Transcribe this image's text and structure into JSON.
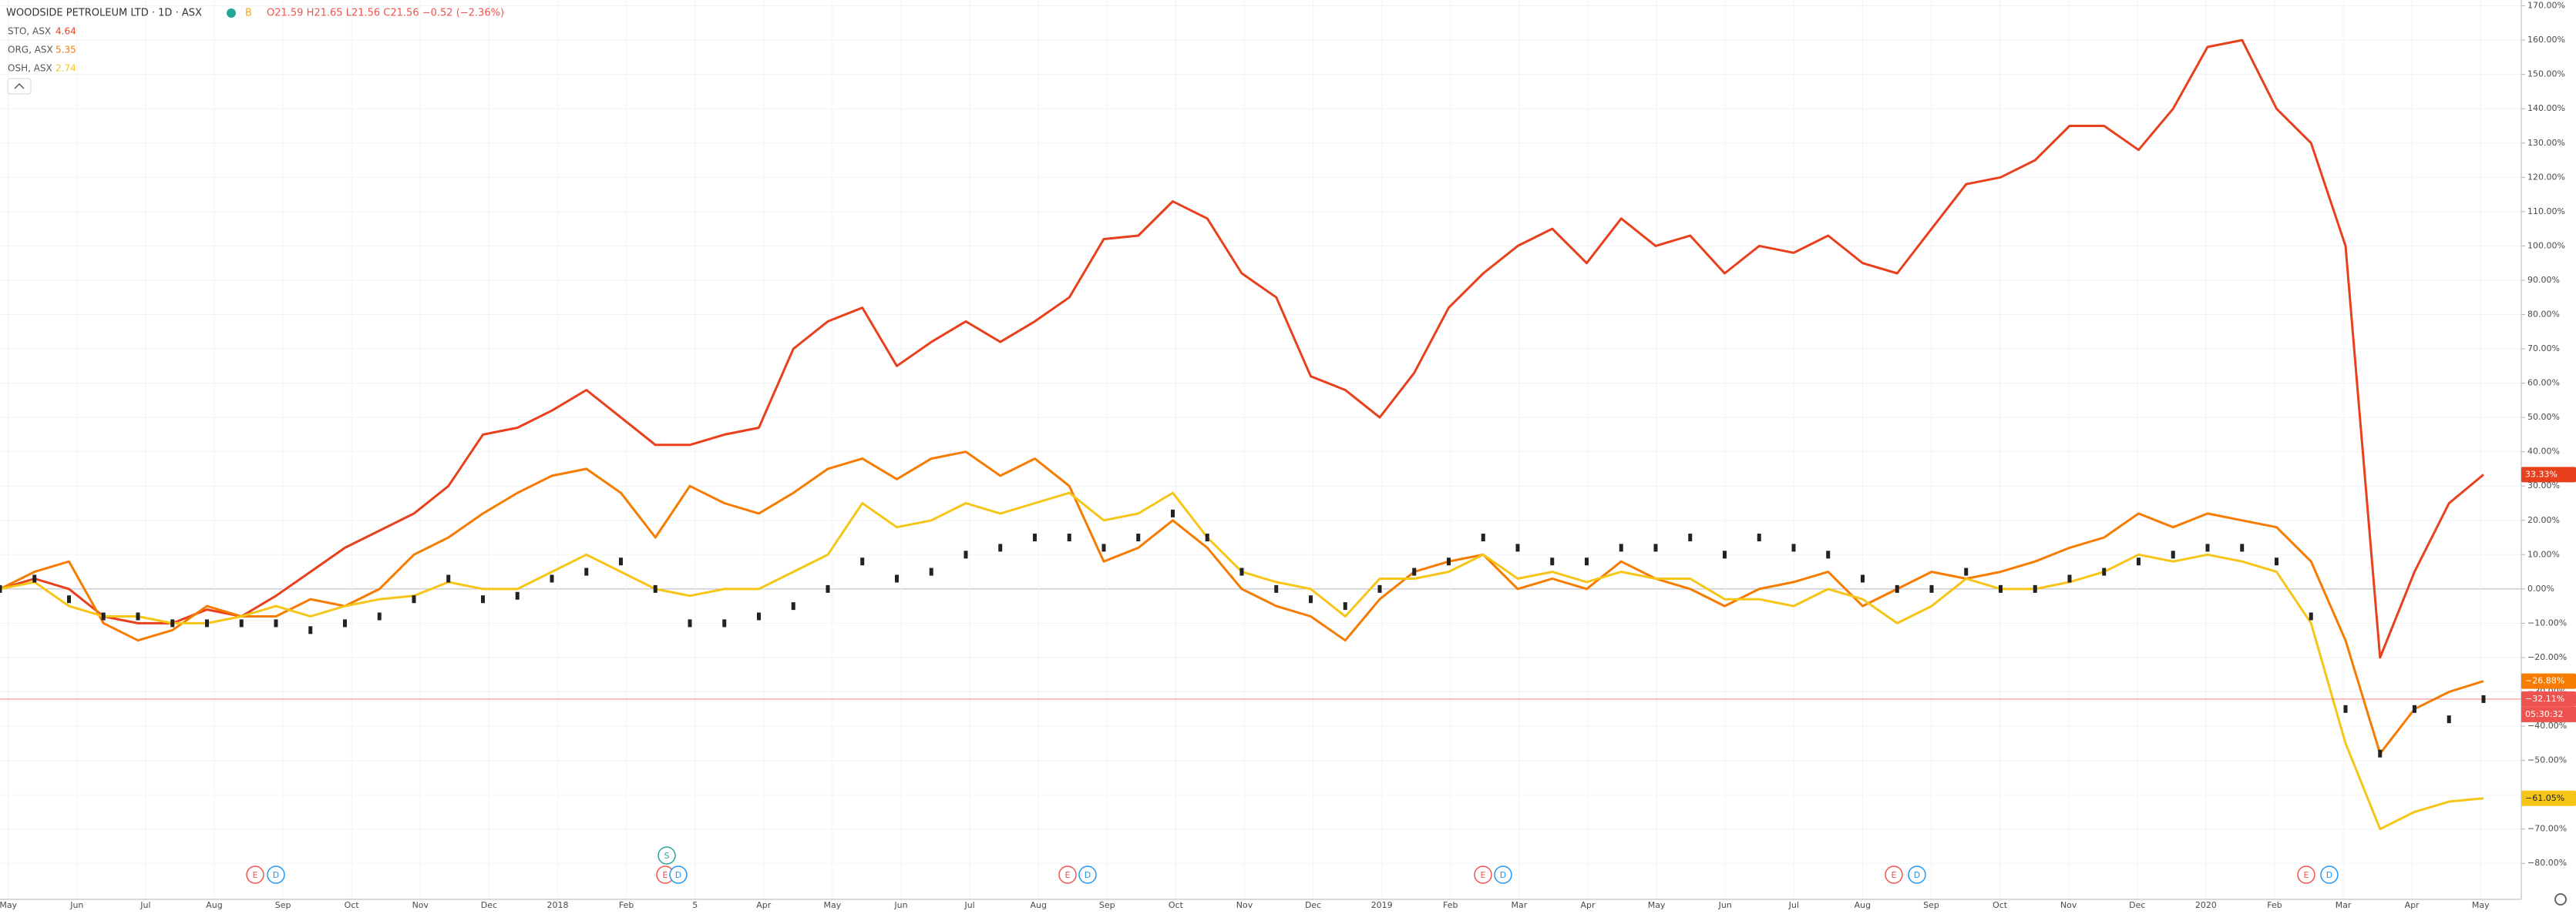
{
  "chart_data": {
    "type": "line",
    "title": "WOODSIDE PETROLEUM LTD · 1D · ASX",
    "badge": "B",
    "ohlc_text": "O21.59 H21.65 L21.56 C21.56 −0.52 (−2.36%)",
    "countdown": "05:30:32",
    "ylim": [
      -90.5,
      171.7
    ],
    "yticks": [
      {
        "value": 170,
        "label": "170.00%"
      },
      {
        "value": 160,
        "label": "160.00%"
      },
      {
        "value": 150,
        "label": "150.00%"
      },
      {
        "value": 140,
        "label": "140.00%"
      },
      {
        "value": 130,
        "label": "130.00%"
      },
      {
        "value": 120,
        "label": "120.00%"
      },
      {
        "value": 110,
        "label": "110.00%"
      },
      {
        "value": 100,
        "label": "100.00%"
      },
      {
        "value": 90,
        "label": "90.00%"
      },
      {
        "value": 80,
        "label": "80.00%"
      },
      {
        "value": 70,
        "label": "70.00%"
      },
      {
        "value": 60,
        "label": "60.00%"
      },
      {
        "value": 50,
        "label": "50.00%"
      },
      {
        "value": 40,
        "label": "40.00%"
      },
      {
        "value": 30,
        "label": "30.00%"
      },
      {
        "value": 20,
        "label": "20.00%"
      },
      {
        "value": 10,
        "label": "10.00%"
      },
      {
        "value": 0,
        "label": "0.00%"
      },
      {
        "value": -10,
        "label": "−10.00%"
      },
      {
        "value": -20,
        "label": "−20.00%"
      },
      {
        "value": -30,
        "label": "−30.00%"
      },
      {
        "value": -40,
        "label": "−40.00%"
      },
      {
        "value": -50,
        "label": "−50.00%"
      },
      {
        "value": -60,
        "label": "−60.00%"
      },
      {
        "value": -70,
        "label": "−70.00%"
      },
      {
        "value": -80,
        "label": "−80.00%"
      }
    ],
    "grid": true,
    "xticks": [
      "May",
      "Jun",
      "Jul",
      "Aug",
      "Sep",
      "Oct",
      "Nov",
      "Dec",
      "2018",
      "Feb",
      "5",
      "Apr",
      "May",
      "Jun",
      "Jul",
      "Aug",
      "Sep",
      "Oct",
      "Nov",
      "Dec",
      "2019",
      "Feb",
      "Mar",
      "Apr",
      "May",
      "Jun",
      "Jul",
      "Aug",
      "Sep",
      "Oct",
      "Nov",
      "Dec",
      "2020",
      "Feb",
      "Mar",
      "Apr",
      "May"
    ],
    "events": [
      "E",
      "D",
      "E",
      "D",
      "S",
      "E",
      "D",
      "E",
      "D",
      "E",
      "D",
      "E",
      "D"
    ],
    "main": {
      "color": "#222222",
      "line_color": "#ef5350",
      "values": [
        0,
        3,
        -3,
        -8,
        -8,
        -10,
        -10,
        -10,
        -10,
        -12,
        -10,
        -8,
        -3,
        3,
        -3,
        -2,
        3,
        5,
        8,
        0,
        -10,
        -10,
        -8,
        -5,
        0,
        8,
        3,
        5,
        10,
        12,
        15,
        15,
        12,
        15,
        22,
        15,
        5,
        0,
        -3,
        -5,
        0,
        5,
        8,
        15,
        12,
        8,
        8,
        12,
        12,
        15,
        10,
        15,
        12,
        10,
        3,
        0,
        0,
        5,
        0,
        0,
        3,
        5,
        8,
        10,
        12,
        12,
        8,
        -8,
        -35,
        -48,
        -35,
        -38,
        -32.11
      ],
      "value_labels": [
        null,
        null,
        null,
        null,
        null,
        null,
        null,
        null,
        null,
        null,
        null,
        null,
        null,
        null,
        null,
        null,
        null,
        null,
        null,
        null,
        null,
        null,
        null,
        null,
        null,
        null,
        null,
        null,
        null,
        null,
        null,
        null,
        null,
        null,
        null,
        null,
        null,
        null,
        null,
        null,
        null,
        null,
        null,
        null,
        null,
        null,
        null,
        null,
        null,
        null,
        null,
        null,
        null,
        null,
        null,
        null,
        null,
        null,
        null,
        null,
        null,
        null,
        null,
        null,
        null,
        null,
        null,
        null,
        null,
        null,
        null,
        null,
        "−32.11%"
      ]
    },
    "series": [
      {
        "name": "STO, ASX",
        "price": 4.64,
        "color": "#e8401c",
        "values": [
          0,
          3,
          0,
          -8,
          -10,
          -10,
          -6,
          -8,
          -2,
          5,
          12,
          17,
          22,
          30,
          45,
          47,
          52,
          58,
          50,
          42,
          42,
          45,
          47,
          70,
          78,
          82,
          65,
          72,
          78,
          72,
          78,
          85,
          102,
          103,
          113,
          108,
          92,
          85,
          62,
          58,
          50,
          63,
          82,
          92,
          100,
          105,
          95,
          108,
          100,
          103,
          92,
          100,
          98,
          103,
          95,
          92,
          105,
          118,
          120,
          125,
          135,
          135,
          128,
          140,
          158,
          160,
          140,
          130,
          100,
          -20,
          5,
          25,
          33.33
        ],
        "value_labels": [
          null,
          null,
          null,
          null,
          null,
          null,
          null,
          null,
          null,
          null,
          null,
          null,
          null,
          null,
          null,
          null,
          null,
          null,
          null,
          null,
          null,
          null,
          null,
          null,
          null,
          null,
          null,
          null,
          null,
          null,
          null,
          null,
          null,
          null,
          null,
          null,
          null,
          null,
          null,
          null,
          null,
          null,
          null,
          null,
          null,
          null,
          null,
          null,
          null,
          null,
          null,
          null,
          null,
          null,
          null,
          null,
          null,
          null,
          null,
          null,
          null,
          null,
          null,
          null,
          null,
          null,
          null,
          null,
          null,
          null,
          null,
          null,
          "33.33%"
        ]
      },
      {
        "name": "ORG, ASX",
        "price": 5.35,
        "color": "#f57c00",
        "values": [
          0,
          5,
          8,
          -10,
          -15,
          -12,
          -5,
          -8,
          -8,
          -3,
          -5,
          0,
          10,
          15,
          22,
          28,
          33,
          35,
          28,
          15,
          30,
          25,
          22,
          28,
          35,
          38,
          32,
          38,
          40,
          33,
          38,
          30,
          8,
          12,
          20,
          12,
          0,
          -5,
          -8,
          -15,
          -3,
          5,
          8,
          10,
          0,
          3,
          0,
          8,
          3,
          0,
          -5,
          0,
          2,
          5,
          -5,
          0,
          5,
          3,
          5,
          8,
          12,
          15,
          22,
          18,
          22,
          20,
          18,
          8,
          -15,
          -48,
          -35,
          -30,
          -26.88
        ],
        "value_labels": [
          null,
          null,
          null,
          null,
          null,
          null,
          null,
          null,
          null,
          null,
          null,
          null,
          null,
          null,
          null,
          null,
          null,
          null,
          null,
          null,
          null,
          null,
          null,
          null,
          null,
          null,
          null,
          null,
          null,
          null,
          null,
          null,
          null,
          null,
          null,
          null,
          null,
          null,
          null,
          null,
          null,
          null,
          null,
          null,
          null,
          null,
          null,
          null,
          null,
          null,
          null,
          null,
          null,
          null,
          null,
          null,
          null,
          null,
          null,
          null,
          null,
          null,
          null,
          null,
          null,
          null,
          null,
          null,
          null,
          null,
          null,
          null,
          "−26.88%"
        ]
      },
      {
        "name": "OSH, ASX",
        "price": 2.74,
        "color": "#f5c518",
        "values": [
          0,
          2,
          -5,
          -8,
          -8,
          -10,
          -10,
          -8,
          -5,
          -8,
          -5,
          -3,
          -2,
          2,
          0,
          0,
          5,
          10,
          5,
          0,
          -2,
          0,
          0,
          5,
          10,
          25,
          18,
          20,
          25,
          22,
          25,
          28,
          20,
          22,
          28,
          15,
          5,
          2,
          0,
          -8,
          3,
          3,
          5,
          10,
          3,
          5,
          2,
          5,
          3,
          3,
          -3,
          -3,
          -5,
          0,
          -3,
          -10,
          -5,
          3,
          0,
          0,
          2,
          5,
          10,
          8,
          10,
          8,
          5,
          -10,
          -45,
          -70,
          -65,
          -62,
          -61.05
        ],
        "value_labels": [
          null,
          null,
          null,
          null,
          null,
          null,
          null,
          null,
          null,
          null,
          null,
          null,
          null,
          null,
          null,
          null,
          null,
          null,
          null,
          null,
          null,
          null,
          null,
          null,
          null,
          null,
          null,
          null,
          null,
          null,
          null,
          null,
          null,
          null,
          null,
          null,
          null,
          null,
          null,
          null,
          null,
          null,
          null,
          null,
          null,
          null,
          null,
          null,
          null,
          null,
          null,
          null,
          null,
          null,
          null,
          null,
          null,
          null,
          null,
          null,
          null,
          null,
          null,
          null,
          null,
          null,
          null,
          null,
          null,
          null,
          null,
          null,
          "−61.05%"
        ]
      }
    ]
  }
}
